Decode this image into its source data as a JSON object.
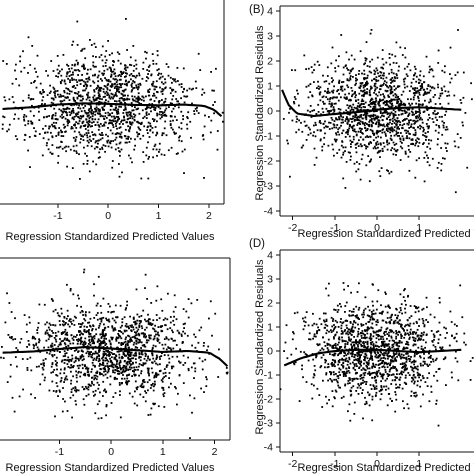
{
  "figure": {
    "panels": [
      {
        "id": "A",
        "tag": "",
        "xlabel": "Regression Standardized Predicted Values",
        "ylabel": ""
      },
      {
        "id": "B",
        "tag": "(B)",
        "xlabel": "Regression Standardized Predicted Values",
        "ylabel": "Regression Standardized Residuals"
      },
      {
        "id": "C",
        "tag": "",
        "xlabel": "Regression Standardized Predicted Values",
        "ylabel": ""
      },
      {
        "id": "D",
        "tag": "(D)",
        "xlabel": "Regression Standardized Predicted Values",
        "ylabel": "Regression Standardized Residuals"
      }
    ]
  },
  "chart_data": [
    {
      "panel": "A",
      "type": "scatter",
      "title": "",
      "xlabel": "Regression Standardized Predicted Values",
      "ylabel": "",
      "xlim": [
        -2.15,
        2.3
      ],
      "ylim": [
        -3.8,
        4.1
      ],
      "xticks": [
        -1,
        0,
        1,
        2
      ],
      "yticks": [],
      "n_points": 1400,
      "point_distribution": {
        "x_mean": 0.0,
        "x_sd": 0.85,
        "residual_mean": 0.0,
        "residual_sd": 1.0
      },
      "trend": {
        "x": [
          -2.1,
          -1.5,
          -1.0,
          -0.5,
          0.0,
          0.5,
          1.0,
          1.5,
          1.9,
          2.1,
          2.25
        ],
        "y": [
          -0.12,
          -0.05,
          0.05,
          0.1,
          0.08,
          0.04,
          0.02,
          0.05,
          0.0,
          -0.15,
          -0.4
        ]
      }
    },
    {
      "panel": "B",
      "type": "scatter",
      "title": "",
      "xlabel": "Regression Standardized Predicted Values",
      "ylabel": "Regression Standardized Residuals",
      "xlim": [
        -2.3,
        2.3
      ],
      "ylim": [
        -4.2,
        4.2
      ],
      "xticks": [
        -2,
        -1,
        0,
        1
      ],
      "yticks": [
        -4,
        -3,
        -2,
        -1,
        0,
        1,
        2,
        3,
        4
      ],
      "n_points": 1400,
      "point_distribution": {
        "x_mean": 0.0,
        "x_sd": 0.85,
        "residual_mean": 0.0,
        "residual_sd": 1.0
      },
      "trend": {
        "x": [
          -2.25,
          -2.1,
          -1.9,
          -1.5,
          -1.0,
          -0.5,
          0.0,
          0.5,
          1.0,
          1.5,
          2.0
        ],
        "y": [
          0.85,
          0.25,
          -0.1,
          -0.2,
          -0.12,
          -0.05,
          0.05,
          0.12,
          0.15,
          0.1,
          0.05
        ]
      }
    },
    {
      "panel": "C",
      "type": "scatter",
      "title": "",
      "xlabel": "Regression Standardized Predicted Values",
      "ylabel": "",
      "xlim": [
        -2.15,
        2.3
      ],
      "ylim": [
        -3.6,
        3.8
      ],
      "xticks": [
        -1,
        0,
        1,
        2
      ],
      "yticks": [],
      "n_points": 1400,
      "point_distribution": {
        "x_mean": 0.0,
        "x_sd": 0.85,
        "residual_mean": 0.0,
        "residual_sd": 1.0
      },
      "trend": {
        "x": [
          -2.1,
          -1.5,
          -1.0,
          -0.5,
          0.0,
          0.5,
          1.0,
          1.5,
          1.9,
          2.1,
          2.25
        ],
        "y": [
          -0.05,
          0.0,
          0.1,
          0.18,
          0.12,
          0.05,
          -0.02,
          0.02,
          -0.05,
          -0.3,
          -0.6
        ]
      }
    },
    {
      "panel": "D",
      "type": "scatter",
      "title": "",
      "xlabel": "Regression Standardized Predicted Values",
      "ylabel": "Regression Standardized Residuals",
      "xlim": [
        -2.3,
        2.3
      ],
      "ylim": [
        -4.2,
        4.2
      ],
      "xticks": [
        -2,
        -1,
        0,
        1
      ],
      "yticks": [
        -4,
        -3,
        -2,
        -1,
        0,
        1,
        2,
        3,
        4
      ],
      "n_points": 1400,
      "point_distribution": {
        "x_mean": 0.0,
        "x_sd": 0.85,
        "residual_mean": 0.0,
        "residual_sd": 1.0
      },
      "trend": {
        "x": [
          -2.2,
          -1.8,
          -1.4,
          -1.0,
          -0.5,
          0.0,
          0.5,
          1.0,
          1.5,
          2.0
        ],
        "y": [
          -0.6,
          -0.3,
          -0.1,
          0.0,
          0.05,
          0.05,
          0.0,
          -0.05,
          0.0,
          0.05
        ]
      }
    }
  ]
}
